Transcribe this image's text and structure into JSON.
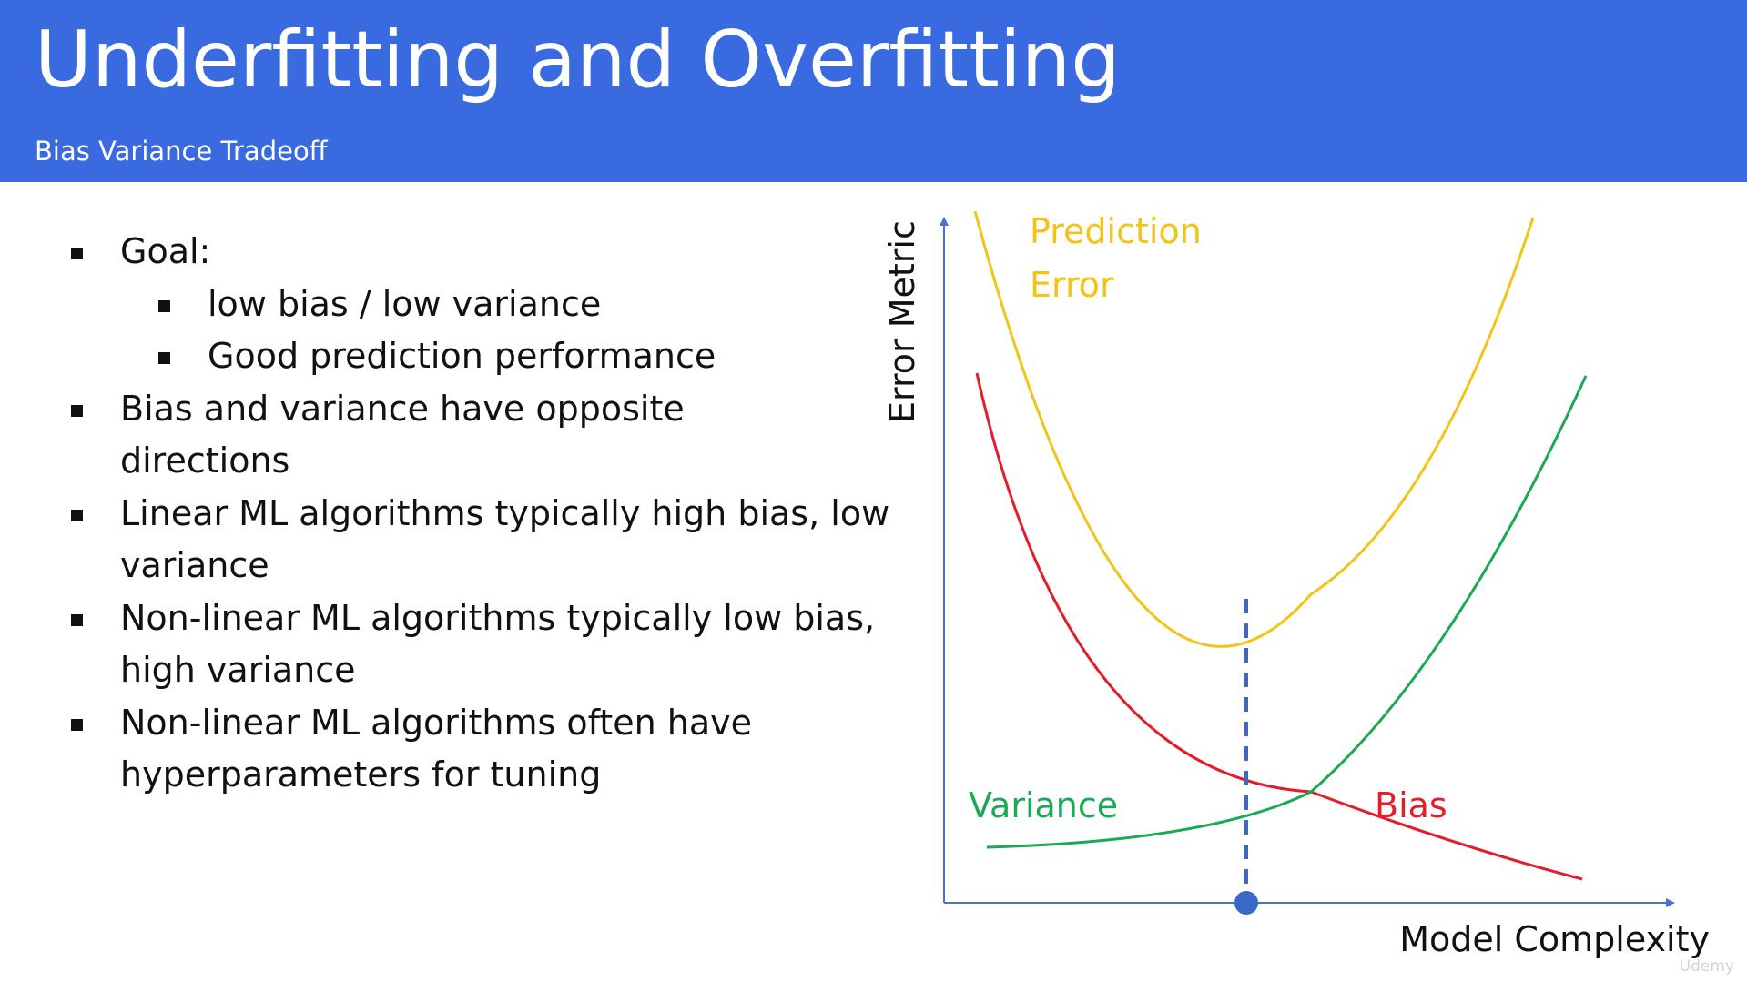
{
  "slide": {
    "title": "Underfitting and Overfitting",
    "subtitle": "Bias Variance Tradeoff"
  },
  "bullets": [
    {
      "level": 1,
      "text": "Goal:"
    },
    {
      "level": 2,
      "text": "low bias / low variance"
    },
    {
      "level": 2,
      "text": "Good prediction performance"
    },
    {
      "level": 1,
      "text": "Bias and variance have opposite directions"
    },
    {
      "level": 1,
      "text": "Linear ML algorithms typically high bias, low variance"
    },
    {
      "level": 1,
      "text": "Non-linear ML algorithms typically low bias, high variance"
    },
    {
      "level": 1,
      "text": "Non-linear ML algorithms often have hyperparameters for tuning"
    }
  ],
  "diagram": {
    "y_axis_label": "Error Metric",
    "x_axis_label": "Model Complexity",
    "curves": {
      "prediction_error": {
        "label_line1": "Prediction",
        "label_line2": "Error",
        "color": "#f2c418"
      },
      "bias": {
        "label": "Bias",
        "color": "#e31e2b"
      },
      "variance": {
        "label": "Variance",
        "color": "#1aaa55"
      }
    },
    "axis_color": "#4a72c8",
    "optimum_marker_color": "#3a68c8"
  },
  "watermark": "Udemy"
}
